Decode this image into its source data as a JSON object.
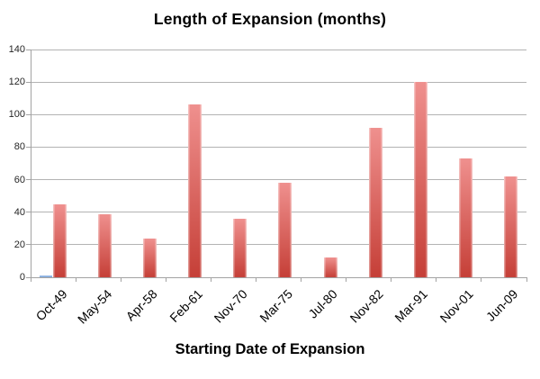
{
  "chart_title": "Length of Expansion (months)",
  "x_axis_title": "Starting Date of Expansion",
  "chart_data": {
    "type": "bar",
    "title": "Length of Expansion (months)",
    "xlabel": "Starting Date of Expansion",
    "ylabel": "",
    "categories": [
      "Oct-49",
      "May-54",
      "Apr-58",
      "Feb-61",
      "Nov-70",
      "Mar-75",
      "Jul-80",
      "Nov-82",
      "Mar-91",
      "Nov-01",
      "Jun-09"
    ],
    "series": [
      {
        "name": "unlabeled-blue-series",
        "values": [
          1,
          0,
          0,
          0,
          0,
          0,
          0,
          0,
          0,
          0,
          0
        ],
        "color_top": "#A4C4EC",
        "color_bottom": "#7FA5D6"
      },
      {
        "name": "expansion-length-months",
        "values": [
          45,
          39,
          24,
          106,
          36,
          58,
          12,
          92,
          120,
          73,
          62
        ],
        "color_top": "#EF908E",
        "color_bottom": "#C53F37"
      }
    ],
    "ylim": [
      0,
      140
    ],
    "yticks": [
      0,
      20,
      40,
      60,
      80,
      100,
      120,
      140
    ],
    "grid": true,
    "legend": false
  },
  "colors": {
    "background": "#FFFFFF",
    "gridline": "#B3B3B3",
    "axis": "#A3A3A3",
    "bar_red_top": "#EF908E",
    "bar_red_bottom": "#C53F37",
    "bar_blue": "#8FB3E2",
    "text": "#111111"
  }
}
